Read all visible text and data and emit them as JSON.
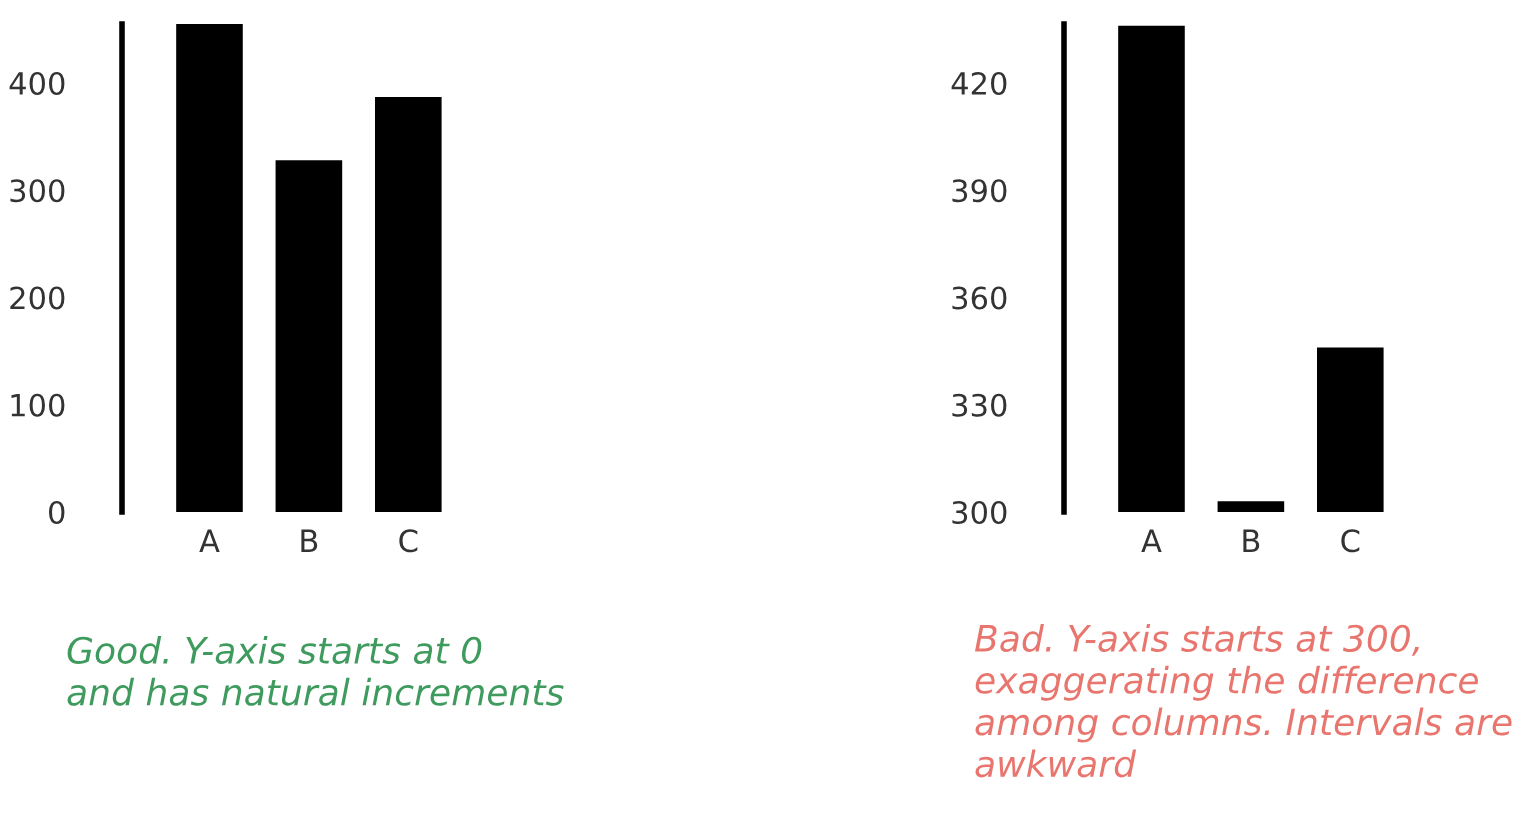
{
  "chart_data": [
    {
      "type": "bar",
      "categories": [
        "A",
        "B",
        "C"
      ],
      "values": [
        455,
        328,
        387
      ],
      "color": "#000000",
      "ylim": [
        0,
        455
      ],
      "yticks": [
        0,
        100,
        200,
        300,
        400
      ],
      "grid": false,
      "annotations": [
        "Good. Y-axis starts at 0\nand has natural increments"
      ]
    },
    {
      "type": "bar",
      "categories": [
        "A",
        "B",
        "C"
      ],
      "values": [
        436,
        303,
        346
      ],
      "color": "#000000",
      "ylim": [
        300,
        436.5
      ],
      "yticks": [
        300,
        330,
        360,
        390,
        420
      ],
      "grid": false,
      "annotations": [
        "Bad. Y-axis starts at 300,\nexaggerating the difference\namong columns. Intervals are\nawkward"
      ]
    }
  ]
}
